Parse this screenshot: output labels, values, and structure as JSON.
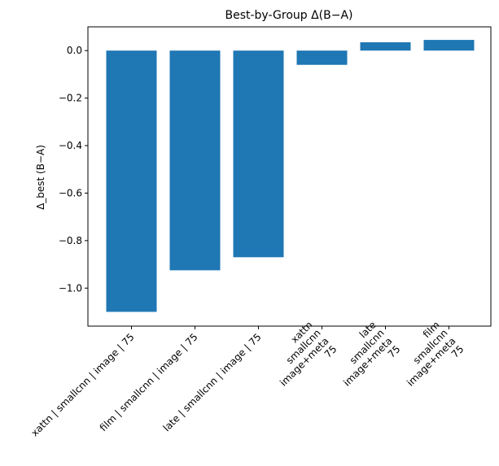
{
  "chart_data": {
    "type": "bar",
    "title": "Best-by-Group Δ(B−A)",
    "xlabel": "",
    "ylabel": "Δ_best (B−A)",
    "categories": [
      [
        "xattn | smallcnn | image | 75"
      ],
      [
        "film | smallcnn | image | 75"
      ],
      [
        "late | smallcnn | image | 75"
      ],
      [
        "xattn",
        "smallcnn",
        "image+meta",
        "75"
      ],
      [
        "late",
        "smallcnn",
        "image+meta",
        "75"
      ],
      [
        "film",
        "smallcnn",
        "image+meta",
        "75"
      ]
    ],
    "values": [
      -1.1,
      -0.925,
      -0.87,
      -0.06,
      0.035,
      0.045
    ],
    "ylim": [
      -1.16,
      0.1
    ],
    "yticks": [
      0.0,
      -0.2,
      -0.4,
      -0.6,
      -0.8,
      -1.0
    ],
    "ytick_labels": [
      "0.0",
      "−0.2",
      "−0.4",
      "−0.6",
      "−0.8",
      "−1.0"
    ],
    "grid": false,
    "legend": "none",
    "bar_color": "#1f77b4"
  }
}
